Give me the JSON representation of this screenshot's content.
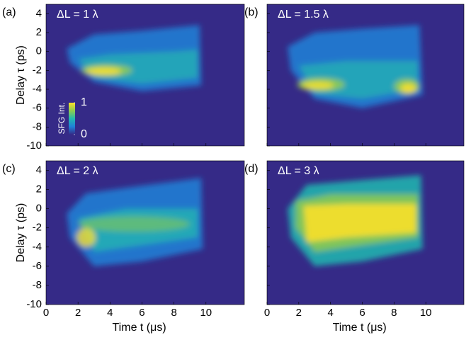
{
  "chart_data": {
    "type": "heatmap",
    "xlabel": "Time t (μs)",
    "ylabel": "Delay τ (ps)",
    "xlim": [
      0,
      12.4
    ],
    "xticks": [
      0,
      2,
      4,
      6,
      8,
      10
    ],
    "ylim": [
      -10,
      5
    ],
    "yticks": [
      4,
      2,
      0,
      -2,
      -4,
      -6,
      -8,
      -10
    ],
    "background": "#352a87",
    "colorbar": {
      "label": "SFG Int.",
      "lim": [
        0,
        1
      ],
      "ticks": [
        1,
        0
      ],
      "colors": [
        "#352a87",
        "#1f82d8",
        "#22b8b0",
        "#8fcb4e",
        "#f9e02a"
      ]
    },
    "panels": [
      {
        "label": "(a)",
        "annotation": "ΔL = 1 λ"
      },
      {
        "label": "(b)",
        "annotation": "ΔL = 1.5 λ"
      },
      {
        "label": "(c)",
        "annotation": "ΔL = 2 λ"
      },
      {
        "label": "(d)",
        "annotation": "ΔL = 3 λ"
      }
    ]
  }
}
